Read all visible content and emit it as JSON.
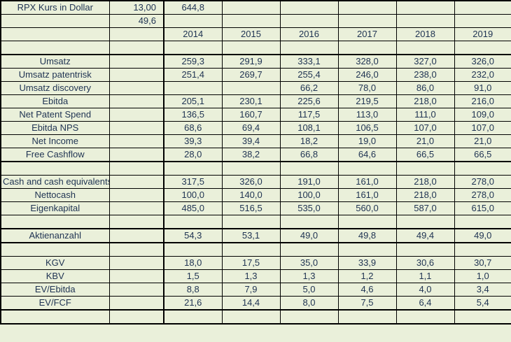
{
  "colors": {
    "cell_background": "#eaf0da",
    "text": "#1f3352",
    "grid_line": "#000000"
  },
  "spreadsheet": {
    "years": [
      "2014",
      "2015",
      "2016",
      "2017",
      "2018",
      "2019"
    ],
    "sections": [
      {
        "rows": [
          {
            "label": "RPX Kurs in Dollar",
            "b": "13,00",
            "values": [
              "644,8",
              "",
              "",
              "",
              "",
              ""
            ]
          },
          {
            "label": "",
            "b": "49,6",
            "values": [
              "",
              "",
              "",
              "",
              "",
              ""
            ]
          },
          {
            "label": "",
            "b": "",
            "year_header": true,
            "values": [
              "2014",
              "2015",
              "2016",
              "2017",
              "2018",
              "2019"
            ]
          },
          {
            "label": "",
            "b": "",
            "values": [
              "",
              "",
              "",
              "",
              "",
              ""
            ]
          }
        ]
      },
      {
        "rows": [
          {
            "label": "Umsatz",
            "b": "",
            "values": [
              "259,3",
              "291,9",
              "333,1",
              "328,0",
              "327,0",
              "326,0"
            ]
          },
          {
            "label": "Umsatz patentrisk",
            "b": "",
            "values": [
              "251,4",
              "269,7",
              "255,4",
              "246,0",
              "238,0",
              "232,0"
            ]
          },
          {
            "label": "Umsatz discovery",
            "b": "",
            "values": [
              "",
              "",
              "66,2",
              "78,0",
              "86,0",
              "91,0"
            ]
          },
          {
            "label": "Ebitda",
            "b": "",
            "values": [
              "205,1",
              "230,1",
              "225,6",
              "219,5",
              "218,0",
              "216,0"
            ]
          },
          {
            "label": "Net Patent Spend",
            "b": "",
            "values": [
              "136,5",
              "160,7",
              "117,5",
              "113,0",
              "111,0",
              "109,0"
            ]
          },
          {
            "label": "Ebitda NPS",
            "b": "",
            "values": [
              "68,6",
              "69,4",
              "108,1",
              "106,5",
              "107,0",
              "107,0"
            ]
          },
          {
            "label": "Net Income",
            "b": "",
            "values": [
              "39,3",
              "39,4",
              "18,2",
              "19,0",
              "21,0",
              "21,0"
            ]
          },
          {
            "label": "Free Cashflow",
            "b": "",
            "values": [
              "28,0",
              "38,2",
              "66,8",
              "64,6",
              "66,5",
              "66,5"
            ]
          }
        ]
      },
      {
        "rows": [
          {
            "label": "",
            "b": "",
            "values": [
              "",
              "",
              "",
              "",
              "",
              ""
            ]
          },
          {
            "label": "Cash and cash equivalents",
            "b": "",
            "values": [
              "317,5",
              "326,0",
              "191,0",
              "161,0",
              "218,0",
              "278,0"
            ]
          },
          {
            "label": "Nettocash",
            "b": "",
            "values": [
              "100,0",
              "140,0",
              "100,0",
              "161,0",
              "218,0",
              "278,0"
            ]
          },
          {
            "label": "Eigenkapital",
            "b": "",
            "values": [
              "485,0",
              "516,5",
              "535,0",
              "560,0",
              "587,0",
              "615,0"
            ]
          },
          {
            "label": "",
            "b": "",
            "values": [
              "",
              "",
              "",
              "",
              "",
              ""
            ]
          }
        ]
      },
      {
        "rows": [
          {
            "label": "Aktienanzahl",
            "b": "",
            "values": [
              "54,3",
              "53,1",
              "49,0",
              "49,8",
              "49,4",
              "49,0"
            ]
          }
        ]
      },
      {
        "rows": [
          {
            "label": "",
            "b": "",
            "values": [
              "",
              "",
              "",
              "",
              "",
              ""
            ]
          },
          {
            "label": "KGV",
            "b": "",
            "values": [
              "18,0",
              "17,5",
              "35,0",
              "33,9",
              "30,6",
              "30,7"
            ]
          },
          {
            "label": "KBV",
            "b": "",
            "values": [
              "1,5",
              "1,3",
              "1,3",
              "1,2",
              "1,1",
              "1,0"
            ]
          },
          {
            "label": "EV/Ebitda",
            "b": "",
            "values": [
              "8,8",
              "7,9",
              "5,0",
              "4,6",
              "4,0",
              "3,4"
            ]
          },
          {
            "label": "EV/FCF",
            "b": "",
            "values": [
              "21,6",
              "14,4",
              "8,0",
              "7,5",
              "6,4",
              "5,4"
            ]
          }
        ]
      },
      {
        "rows": [
          {
            "label": "",
            "b": "",
            "values": [
              "",
              "",
              "",
              "",
              "",
              ""
            ]
          }
        ]
      }
    ]
  }
}
